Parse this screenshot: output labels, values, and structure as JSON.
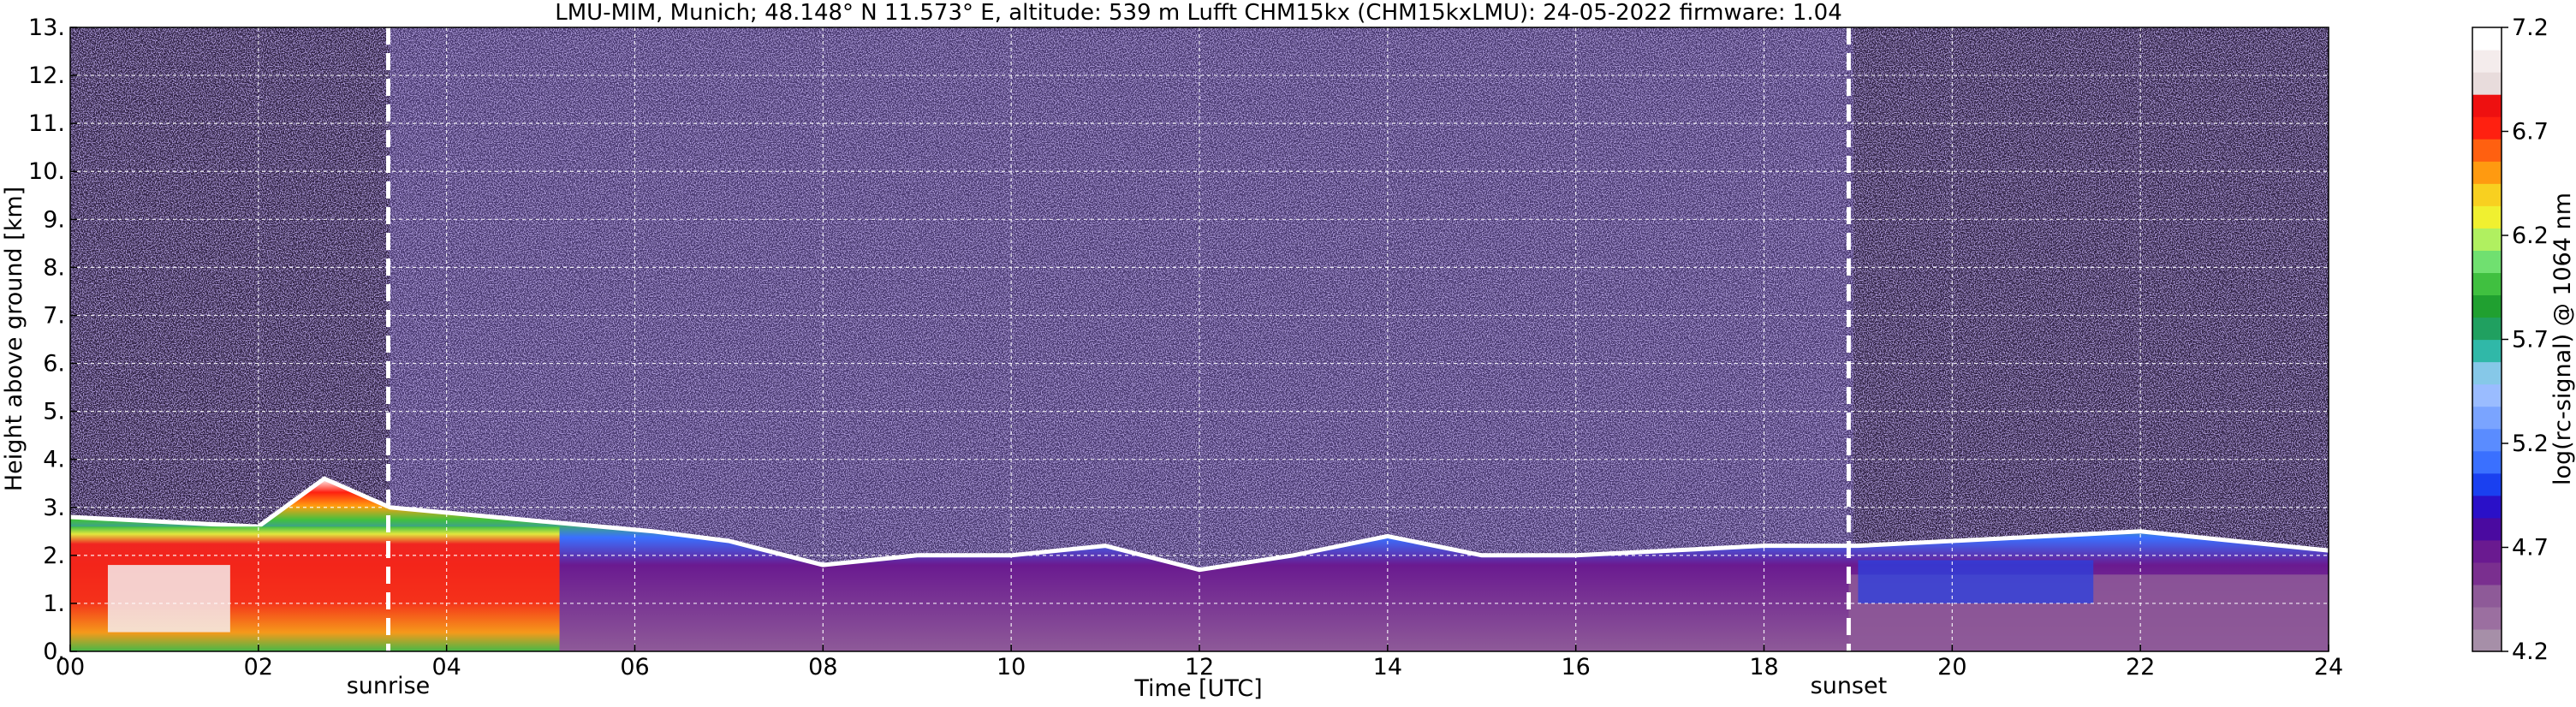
{
  "chart_data": [
    {
      "type": "heatmap",
      "title": "LMU-MIM, Munich; 48.148° N 11.573° E, altitude: 539 m    Lufft CHM15kx (CHM15kxLMU): 24-05-2022    firmware: 1.04",
      "xlabel": "Time [UTC]",
      "ylabel": "Height above ground [km]",
      "xlim": [
        0,
        24
      ],
      "ylim": [
        0,
        13
      ],
      "x_ticks": [
        0,
        2,
        4,
        6,
        8,
        10,
        12,
        14,
        16,
        18,
        20,
        22,
        24
      ],
      "x_tick_labels": [
        "00",
        "02",
        "04",
        "06",
        "08",
        "10",
        "12",
        "14",
        "16",
        "18",
        "20",
        "22",
        "24"
      ],
      "y_ticks": [
        0,
        1,
        2,
        3,
        4,
        5,
        6,
        7,
        8,
        9,
        10,
        11,
        12,
        13
      ],
      "y_tick_labels": [
        "0.",
        "1.",
        "2.",
        "3.",
        "4.",
        "5.",
        "6.",
        "7.",
        "8.",
        "9.",
        "10.",
        "11.",
        "12.",
        "13."
      ],
      "grid": true,
      "annotations": [
        {
          "label": "sunrise",
          "x": 3.38
        },
        {
          "label": "sunset",
          "x": 18.9
        }
      ],
      "boundary_layer_top": [
        {
          "x": 0.0,
          "y": 2.8
        },
        {
          "x": 1.0,
          "y": 2.7
        },
        {
          "x": 2.0,
          "y": 2.6
        },
        {
          "x": 2.7,
          "y": 3.6
        },
        {
          "x": 3.4,
          "y": 3.0
        },
        {
          "x": 4.5,
          "y": 2.8
        },
        {
          "x": 6.2,
          "y": 2.5
        },
        {
          "x": 7.0,
          "y": 2.3
        },
        {
          "x": 8.0,
          "y": 1.8
        },
        {
          "x": 9.0,
          "y": 2.0
        },
        {
          "x": 10.0,
          "y": 2.0
        },
        {
          "x": 11.0,
          "y": 2.2
        },
        {
          "x": 12.0,
          "y": 1.7
        },
        {
          "x": 13.0,
          "y": 2.0
        },
        {
          "x": 14.0,
          "y": 2.4
        },
        {
          "x": 15.0,
          "y": 2.0
        },
        {
          "x": 16.0,
          "y": 2.0
        },
        {
          "x": 17.0,
          "y": 2.1
        },
        {
          "x": 18.0,
          "y": 2.2
        },
        {
          "x": 19.0,
          "y": 2.2
        },
        {
          "x": 20.0,
          "y": 2.3
        },
        {
          "x": 21.0,
          "y": 2.4
        },
        {
          "x": 22.0,
          "y": 2.5
        },
        {
          "x": 23.0,
          "y": 2.3
        },
        {
          "x": 24.0,
          "y": 2.1
        }
      ]
    },
    {
      "type": "colorbar",
      "label": "log(rc-signal) @ 1064 nm",
      "range": [
        4.2,
        7.2
      ],
      "tick_labels": [
        "4.2",
        "4.7",
        "5.2",
        "5.7",
        "6.2",
        "6.7",
        "7.2"
      ],
      "colors": [
        "#a68fa8",
        "#9b6fa0",
        "#8e5a98",
        "#7a2f8f",
        "#6a1a90",
        "#4a0aa0",
        "#2a10c8",
        "#1a40f0",
        "#3a70ff",
        "#5a8cff",
        "#7aa4ff",
        "#9abcff",
        "#86c8e8",
        "#30b8a8",
        "#20a060",
        "#20a030",
        "#40c040",
        "#70e070",
        "#b0f060",
        "#f0f030",
        "#f8d020",
        "#ff9a10",
        "#ff6010",
        "#ff2010",
        "#ee1010",
        "#e8dcdc",
        "#f4ecec",
        "#ffffff"
      ]
    }
  ]
}
